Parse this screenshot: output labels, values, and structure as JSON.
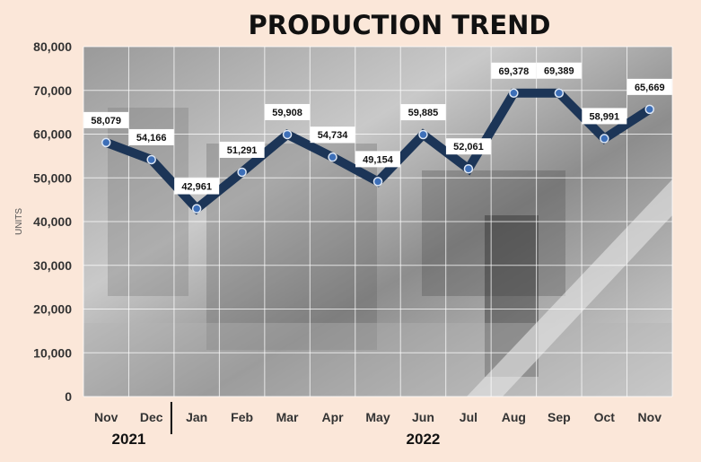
{
  "chart_data": {
    "type": "line",
    "title": "PRODUCTION TREND",
    "ylabel": "UNITS",
    "ylim": [
      0,
      80000
    ],
    "yticks": [
      "0",
      "10,000",
      "20,000",
      "30,000",
      "40,000",
      "50,000",
      "60,000",
      "70,000",
      "80,000"
    ],
    "categories": [
      "Nov",
      "Dec",
      "Jan",
      "Feb",
      "Mar",
      "Apr",
      "May",
      "Jun",
      "Jul",
      "Aug",
      "Sep",
      "Oct",
      "Nov"
    ],
    "values": [
      58079,
      54166,
      42961,
      51291,
      59908,
      54734,
      49154,
      59885,
      52061,
      69378,
      69389,
      58991,
      65669
    ],
    "data_labels": [
      "58,079",
      "54,166",
      "42,961",
      "51,291",
      "59,908",
      "54,734",
      "49,154",
      "59,885",
      "52,061",
      "69,378",
      "69,389",
      "58,991",
      "65,669"
    ],
    "year_groups": [
      {
        "label": "2021",
        "from": 0,
        "to": 1
      },
      {
        "label": "2022",
        "from": 2,
        "to": 12
      }
    ],
    "grid": true,
    "line_color": "#1c3557",
    "marker_color": "#3d6fb8",
    "background_color": "#fbe7d9"
  }
}
